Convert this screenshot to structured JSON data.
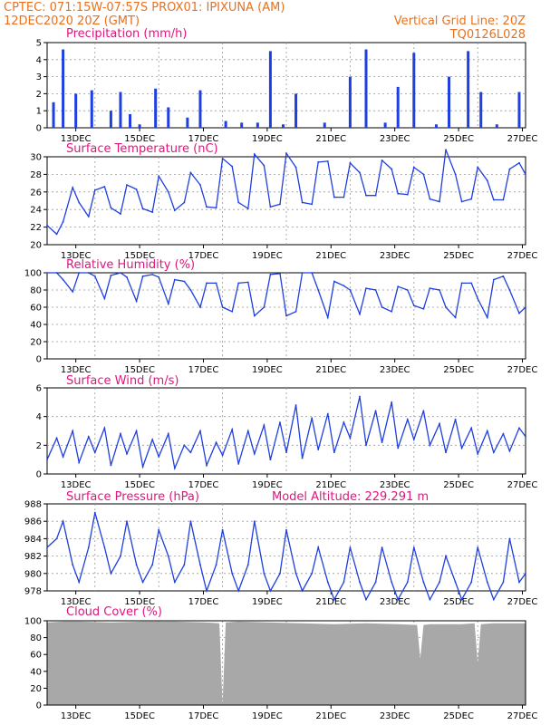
{
  "header": {
    "line1_left": "CPTEC:  071:15W-07:57S  PROX01: IPIXUNA (AM)",
    "line2_left": "12DEC2020 20Z (GMT)",
    "line2_right": "Vertical Grid Line: 20Z",
    "line3_right": "TQ0126L028"
  },
  "colors": {
    "header": "#e8701e",
    "panel_title": "#e0157e",
    "series": "#1f3fe0",
    "cloud": "#a8a8a8"
  },
  "chart_data": [
    {
      "type": "bar",
      "title": "Precipitation (mm/h)",
      "ylim": [
        0,
        5
      ],
      "yticks": [
        "0",
        "1",
        "2",
        "3",
        "4",
        "5"
      ],
      "xticks": [
        "13DEC",
        "15DEC",
        "17DEC",
        "19DEC",
        "21DEC",
        "23DEC",
        "25DEC",
        "27DEC"
      ],
      "grid": true,
      "x_days": [
        0.2,
        0.5,
        0.9,
        1.4,
        2.0,
        2.3,
        2.6,
        2.9,
        3.4,
        3.8,
        4.4,
        4.8,
        5.6,
        6.1,
        6.6,
        7.0,
        7.4,
        7.8,
        8.7,
        9.5,
        10.0,
        10.6,
        11.0,
        11.5,
        12.2,
        12.6,
        13.2,
        13.6,
        14.1,
        14.8
      ],
      "values": [
        1.5,
        4.6,
        2.0,
        2.2,
        1.0,
        2.1,
        0.8,
        0.2,
        2.3,
        1.2,
        0.6,
        2.2,
        0.4,
        0.3,
        0.3,
        4.5,
        0.2,
        2.0,
        0.3,
        3.0,
        4.6,
        0.3,
        2.4,
        4.4,
        0.2,
        3.0,
        4.5,
        2.1,
        0.2,
        2.1
      ]
    },
    {
      "type": "line",
      "title": "Surface Temperature (nC)",
      "ylim": [
        20,
        30
      ],
      "yticks": [
        "20",
        "22",
        "24",
        "26",
        "28",
        "30"
      ],
      "xticks": [
        "13DEC",
        "15DEC",
        "17DEC",
        "19DEC",
        "21DEC",
        "23DEC",
        "25DEC",
        "27DEC"
      ],
      "grid": true,
      "x_days": [
        0,
        0.3,
        0.5,
        0.8,
        1.0,
        1.3,
        1.5,
        1.8,
        2.0,
        2.3,
        2.5,
        2.8,
        3.0,
        3.3,
        3.5,
        3.8,
        4.0,
        4.3,
        4.5,
        4.8,
        5.0,
        5.3,
        5.5,
        5.8,
        6.0,
        6.3,
        6.5,
        6.8,
        7.0,
        7.3,
        7.5,
        7.8,
        8.0,
        8.3,
        8.5,
        8.8,
        9.0,
        9.3,
        9.5,
        9.8,
        10.0,
        10.3,
        10.5,
        10.8,
        11.0,
        11.3,
        11.5,
        11.8,
        12.0,
        12.3,
        12.5,
        12.8,
        13.0,
        13.3,
        13.5,
        13.8,
        14.0,
        14.3,
        14.5,
        14.8,
        15.0
      ],
      "values": [
        22.2,
        21.2,
        22.6,
        26.5,
        24.8,
        23.2,
        26.2,
        26.6,
        24.2,
        23.5,
        26.8,
        26.3,
        24.1,
        23.7,
        27.8,
        26.0,
        23.9,
        24.8,
        28.2,
        26.8,
        24.3,
        24.2,
        29.8,
        28.9,
        24.8,
        24.1,
        30.3,
        29.0,
        24.3,
        24.6,
        30.4,
        28.8,
        24.8,
        24.6,
        29.4,
        29.5,
        25.4,
        25.4,
        29.3,
        28.2,
        25.6,
        25.6,
        29.6,
        28.6,
        25.8,
        25.7,
        28.8,
        28.0,
        25.2,
        24.9,
        30.8,
        28.0,
        24.9,
        25.2,
        28.8,
        27.3,
        25.1,
        25.1,
        28.6,
        29.3,
        28.0
      ]
    },
    {
      "type": "line",
      "title": "Relative Humidity (%)",
      "ylim": [
        0,
        100
      ],
      "yticks": [
        "0",
        "20",
        "40",
        "60",
        "80",
        "100"
      ],
      "xticks": [
        "13DEC",
        "15DEC",
        "17DEC",
        "19DEC",
        "21DEC",
        "23DEC",
        "25DEC",
        "27DEC"
      ],
      "grid": true,
      "x_days": [
        0,
        0.3,
        0.5,
        0.8,
        1.0,
        1.3,
        1.5,
        1.8,
        2.0,
        2.3,
        2.5,
        2.8,
        3.0,
        3.3,
        3.5,
        3.8,
        4.0,
        4.3,
        4.5,
        4.8,
        5.0,
        5.3,
        5.5,
        5.8,
        6.0,
        6.3,
        6.5,
        6.8,
        7.0,
        7.3,
        7.5,
        7.8,
        8.0,
        8.3,
        8.5,
        8.8,
        9.0,
        9.3,
        9.5,
        9.8,
        10.0,
        10.3,
        10.5,
        10.8,
        11.0,
        11.3,
        11.5,
        11.8,
        12.0,
        12.3,
        12.5,
        12.8,
        13.0,
        13.3,
        13.5,
        13.8,
        14.0,
        14.3,
        14.5,
        14.8,
        15.0
      ],
      "values": [
        100,
        100,
        92,
        78,
        100,
        100,
        96,
        70,
        97,
        100,
        95,
        67,
        96,
        98,
        95,
        64,
        92,
        90,
        80,
        60,
        88,
        88,
        60,
        55,
        88,
        89,
        50,
        60,
        98,
        99,
        50,
        55,
        100,
        100,
        80,
        48,
        90,
        85,
        80,
        52,
        82,
        80,
        60,
        55,
        84,
        80,
        62,
        58,
        82,
        80,
        60,
        48,
        88,
        88,
        70,
        48,
        92,
        96,
        80,
        53,
        60
      ]
    },
    {
      "type": "line",
      "title": "Surface Wind (m/s)",
      "ylim": [
        0,
        6
      ],
      "yticks": [
        "0",
        "2",
        "4",
        "6"
      ],
      "xticks": [
        "13DEC",
        "15DEC",
        "17DEC",
        "19DEC",
        "21DEC",
        "23DEC",
        "25DEC",
        "27DEC"
      ],
      "grid": true,
      "x_days": [
        0,
        0.3,
        0.5,
        0.8,
        1.0,
        1.3,
        1.5,
        1.8,
        2.0,
        2.3,
        2.5,
        2.8,
        3.0,
        3.3,
        3.5,
        3.8,
        4.0,
        4.3,
        4.5,
        4.8,
        5.0,
        5.3,
        5.5,
        5.8,
        6.0,
        6.3,
        6.5,
        6.8,
        7.0,
        7.3,
        7.5,
        7.8,
        8.0,
        8.3,
        8.5,
        8.8,
        9.0,
        9.3,
        9.5,
        9.8,
        10.0,
        10.3,
        10.5,
        10.8,
        11.0,
        11.3,
        11.5,
        11.8,
        12.0,
        12.3,
        12.5,
        12.8,
        13.0,
        13.3,
        13.5,
        13.8,
        14.0,
        14.3,
        14.5,
        14.8,
        15.0
      ],
      "values": [
        1.0,
        2.5,
        1.2,
        3.0,
        0.8,
        2.6,
        1.5,
        3.2,
        0.6,
        2.8,
        1.4,
        3.0,
        0.5,
        2.4,
        1.2,
        2.8,
        0.4,
        2.0,
        1.5,
        3.0,
        0.6,
        2.2,
        1.3,
        3.1,
        0.7,
        3.0,
        1.4,
        3.4,
        1.0,
        3.6,
        1.5,
        4.8,
        1.1,
        3.9,
        1.7,
        4.2,
        1.5,
        3.6,
        2.5,
        5.4,
        2.0,
        4.4,
        2.2,
        5.0,
        1.8,
        3.8,
        2.4,
        4.4,
        2.0,
        3.5,
        1.5,
        3.8,
        1.8,
        3.2,
        1.4,
        3.0,
        1.5,
        2.8,
        1.6,
        3.2,
        2.6
      ]
    },
    {
      "type": "line",
      "title": "Surface Pressure (hPa)",
      "annotation": "Model Altitude: 229.291 m",
      "ylim": [
        978,
        988
      ],
      "yticks": [
        "978",
        "980",
        "982",
        "984",
        "986",
        "988"
      ],
      "xticks": [
        "13DEC",
        "15DEC",
        "17DEC",
        "19DEC",
        "21DEC",
        "23DEC",
        "25DEC",
        "27DEC"
      ],
      "grid": true,
      "x_days": [
        0,
        0.3,
        0.5,
        0.8,
        1.0,
        1.3,
        1.5,
        1.8,
        2.0,
        2.3,
        2.5,
        2.8,
        3.0,
        3.3,
        3.5,
        3.8,
        4.0,
        4.3,
        4.5,
        4.8,
        5.0,
        5.3,
        5.5,
        5.8,
        6.0,
        6.3,
        6.5,
        6.8,
        7.0,
        7.3,
        7.5,
        7.8,
        8.0,
        8.3,
        8.5,
        8.8,
        9.0,
        9.3,
        9.5,
        9.8,
        10.0,
        10.3,
        10.5,
        10.8,
        11.0,
        11.3,
        11.5,
        11.8,
        12.0,
        12.3,
        12.5,
        12.8,
        13.0,
        13.3,
        13.5,
        13.8,
        14.0,
        14.3,
        14.5,
        14.8,
        15.0
      ],
      "values": [
        983,
        984,
        986,
        981,
        979,
        983,
        987,
        983,
        980,
        982,
        986,
        981,
        979,
        981,
        985,
        982,
        979,
        981,
        986,
        981,
        978,
        981,
        985,
        980,
        978,
        981,
        986,
        980,
        978,
        980,
        985,
        980,
        978,
        980,
        983,
        979,
        977,
        979,
        983,
        979,
        977,
        979,
        983,
        979,
        977,
        979,
        983,
        979,
        977,
        979,
        982,
        979,
        977,
        979,
        983,
        979,
        977,
        979,
        984,
        979,
        980
      ]
    },
    {
      "type": "area",
      "title": "Cloud Cover (%)",
      "ylim": [
        0,
        100
      ],
      "yticks": [
        "0",
        "20",
        "40",
        "60",
        "80",
        "100"
      ],
      "xticks": [
        "13DEC",
        "15DEC",
        "17DEC",
        "19DEC",
        "21DEC",
        "23DEC",
        "25DEC",
        "27DEC"
      ],
      "grid": true,
      "x_days": [
        0,
        0.5,
        1.0,
        2.0,
        3.0,
        4.0,
        5.0,
        5.4,
        5.5,
        5.6,
        6.0,
        7.0,
        8.0,
        9.0,
        10.0,
        11.0,
        11.6,
        11.7,
        11.8,
        12.0,
        13.0,
        13.4,
        13.5,
        13.6,
        14.0,
        15.0
      ],
      "values": [
        98,
        99,
        99,
        98,
        99,
        99,
        98,
        97,
        0,
        98,
        99,
        98,
        97,
        96,
        97,
        96,
        95,
        55,
        95,
        96,
        96,
        97,
        50,
        96,
        97,
        97
      ]
    }
  ]
}
